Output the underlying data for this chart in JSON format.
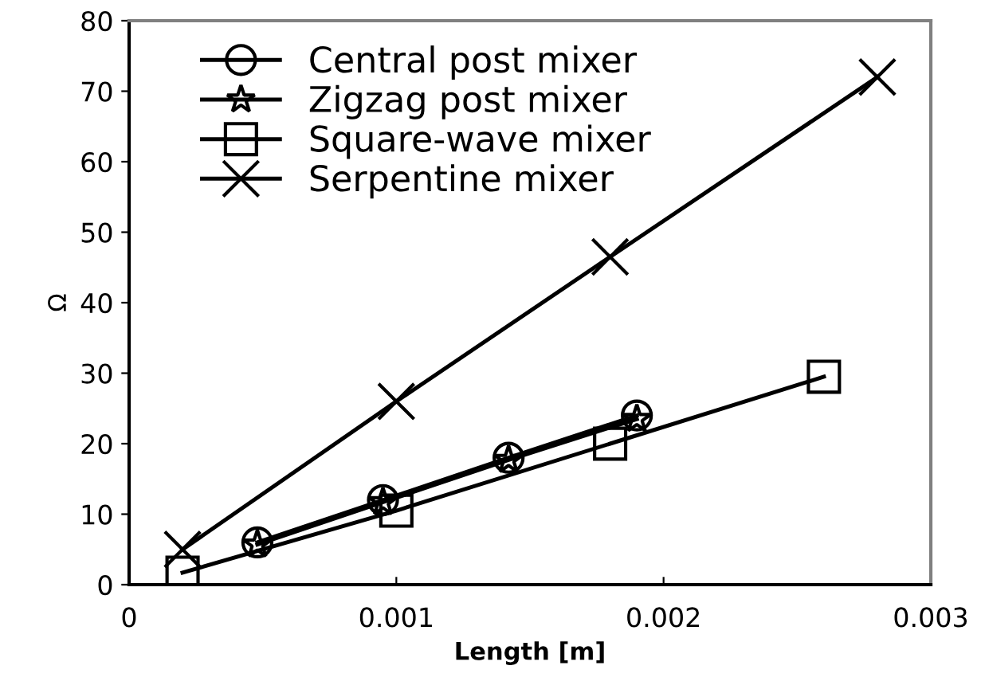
{
  "chart_data": {
    "type": "line",
    "xlabel": "Length [m]",
    "ylabel": "Ω",
    "xlim": [
      0,
      0.003
    ],
    "xticks": [
      0,
      0.001,
      0.002,
      0.003
    ],
    "ylim": [
      0,
      80
    ],
    "yticks": [
      0,
      10,
      20,
      30,
      40,
      50,
      60,
      70,
      80
    ],
    "grid": false,
    "legend": "top left",
    "series": [
      {
        "name": "Central post mixer",
        "color": "#000000",
        "marker": "circle",
        "x": [
          0.00048,
          0.00095,
          0.00142,
          0.0019
        ],
        "values": [
          6,
          12,
          18,
          24
        ]
      },
      {
        "name": "Zigzag post mixer",
        "color": "#000000",
        "marker": "star",
        "x": [
          0.00048,
          0.00095,
          0.00142,
          0.0019
        ],
        "values": [
          5.7,
          11.7,
          17.7,
          23.5
        ]
      },
      {
        "name": "Square-wave mixer",
        "color": "#000000",
        "marker": "square",
        "x": [
          0.0002,
          0.001,
          0.0018,
          0.0026
        ],
        "values": [
          1.7,
          10.5,
          20,
          29.5
        ]
      },
      {
        "name": "Serpentine mixer",
        "color": "#000000",
        "marker": "cross",
        "x": [
          0.0002,
          0.001,
          0.0018,
          0.0028
        ],
        "values": [
          5,
          26,
          46.5,
          72
        ]
      }
    ]
  }
}
